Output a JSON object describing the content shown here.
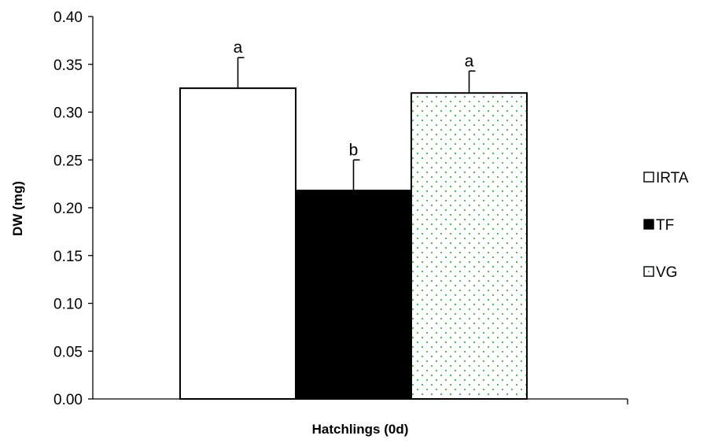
{
  "chart_data": {
    "type": "bar",
    "categories": [
      "Hatchlings (0d)"
    ],
    "series": [
      {
        "name": "IRTA",
        "values": [
          0.325
        ],
        "error": [
          0.032
        ],
        "label": "a",
        "fill": "#ffffff",
        "pattern": "none"
      },
      {
        "name": "TF",
        "values": [
          0.218
        ],
        "error": [
          0.032
        ],
        "label": "b",
        "fill": "#000000",
        "pattern": "none"
      },
      {
        "name": "VG",
        "values": [
          0.32
        ],
        "error": [
          0.023
        ],
        "label": "a",
        "fill": "#ffffff",
        "pattern": "green-dots"
      }
    ],
    "title": "",
    "xlabel": "Hatchlings (0d)",
    "ylabel": "DW (mg)",
    "ylim": [
      0,
      0.4
    ],
    "yticks": [
      "0.00",
      "0.05",
      "0.10",
      "0.15",
      "0.20",
      "0.25",
      "0.30",
      "0.35",
      "0.40"
    ],
    "grid": false,
    "legend_position": "right",
    "colors": {
      "dot_green": "#3cb83c",
      "outline": "#000000"
    }
  }
}
